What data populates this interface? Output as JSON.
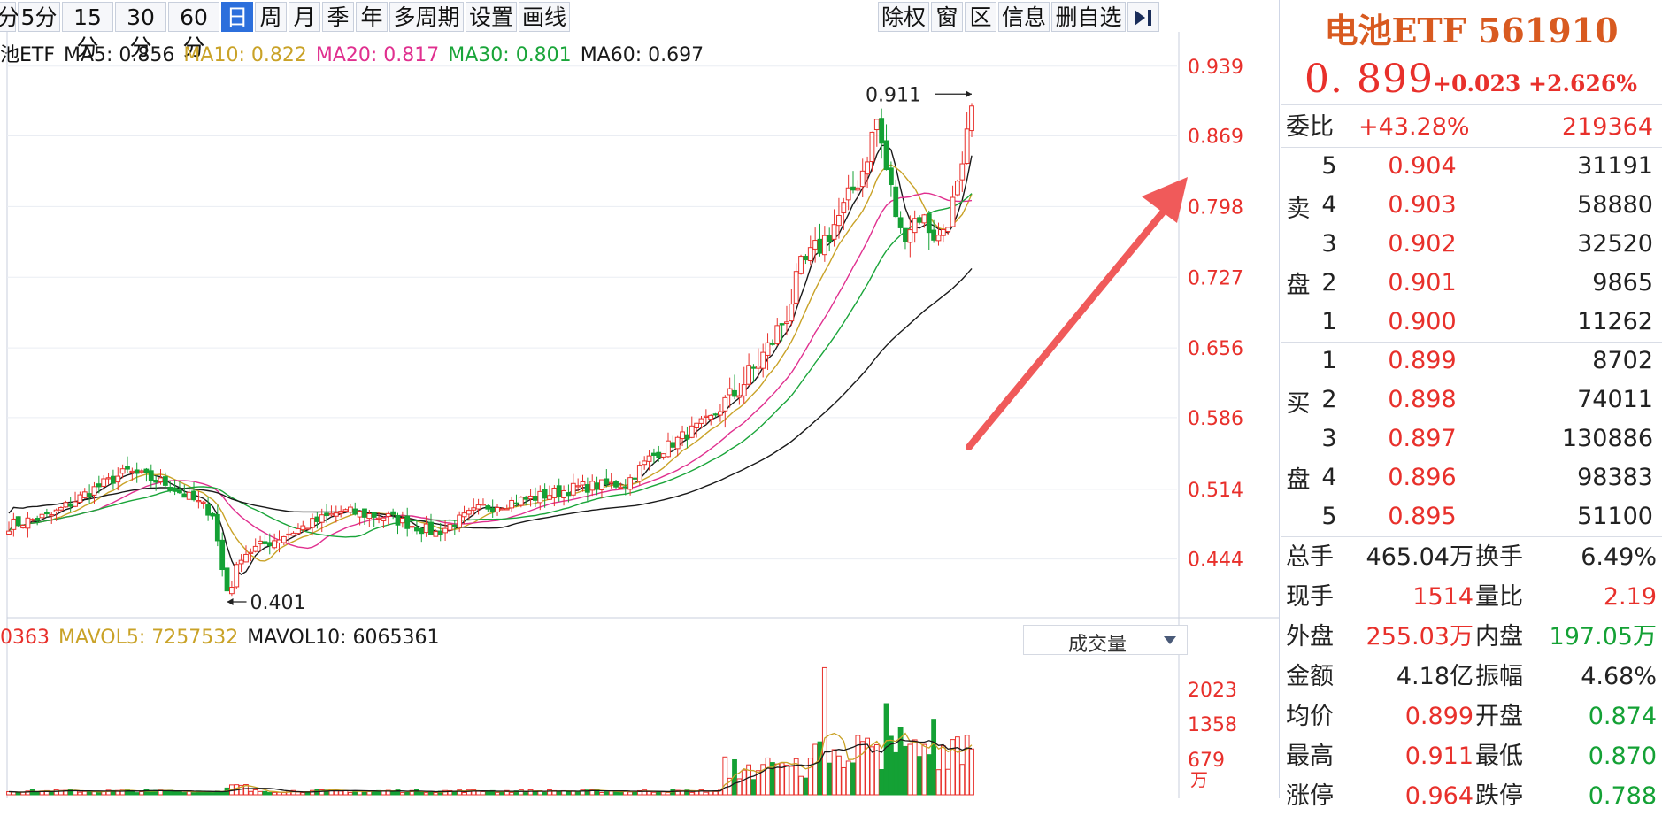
{
  "toolbar": {
    "periods": [
      "分",
      "5分",
      "15分",
      "30分",
      "60分",
      "日",
      "周",
      "月",
      "季",
      "年",
      "多周期",
      "设置",
      "画线"
    ],
    "active_period": "日",
    "actions": [
      "除权",
      "窗",
      "区",
      "信息",
      "删自选"
    ]
  },
  "ma_legend": {
    "name": "池ETF",
    "items": [
      {
        "label": "MA5: 0.856",
        "color": "#1a1a1a"
      },
      {
        "label": "MA10: 0.822",
        "color": "#c9a227"
      },
      {
        "label": "MA20: 0.817",
        "color": "#e0308f"
      },
      {
        "label": "MA30: 0.801",
        "color": "#1aa53a"
      },
      {
        "label": "MA60: 0.697",
        "color": "#1a1a1a"
      }
    ]
  },
  "vol_legend": {
    "items": [
      {
        "label": "0363",
        "color": "#e8302b"
      },
      {
        "label": "MAVOL5: 7257532",
        "color": "#c9a227"
      },
      {
        "label": "MAVOL10: 6065361",
        "color": "#1a1a1a"
      }
    ],
    "selector": "成交量"
  },
  "chart_data": {
    "type": "candlestick",
    "price_axis": {
      "ticks": [
        "0.939",
        "0.869",
        "0.798",
        "0.727",
        "0.656",
        "0.586",
        "0.514",
        "0.444"
      ],
      "range": [
        0.385,
        0.945
      ]
    },
    "volume_axis": {
      "ticks": [
        "2023",
        "1358",
        "679"
      ],
      "unit": "万",
      "range": [
        0,
        2600
      ]
    },
    "annotations": {
      "high": "0.911",
      "low": "0.401"
    },
    "colors": {
      "up": "#e8302b",
      "down": "#14a135",
      "ma5": "#1a1a1a",
      "ma10": "#c9a227",
      "ma20": "#e0308f",
      "ma30": "#1aa53a",
      "ma60": "#1a1a1a",
      "arrow": "#f05a5a"
    }
  },
  "quote": {
    "title": "电池ETF 561910",
    "price": "0. 899",
    "change": "+0.023",
    "change_pct": "+2.626%",
    "weibi": {
      "label": "委比",
      "pct": "+43.28%",
      "diff": "219364"
    },
    "sell_label": [
      "卖",
      "盘"
    ],
    "buy_label": [
      "买",
      "盘"
    ],
    "sell": [
      {
        "level": "5",
        "price": "0.904",
        "vol": "31191"
      },
      {
        "level": "4",
        "price": "0.903",
        "vol": "58880"
      },
      {
        "level": "3",
        "price": "0.902",
        "vol": "32520"
      },
      {
        "level": "2",
        "price": "0.901",
        "vol": "9865"
      },
      {
        "level": "1",
        "price": "0.900",
        "vol": "11262"
      }
    ],
    "buy": [
      {
        "level": "1",
        "price": "0.899",
        "vol": "8702"
      },
      {
        "level": "2",
        "price": "0.898",
        "vol": "74011"
      },
      {
        "level": "3",
        "price": "0.897",
        "vol": "130886"
      },
      {
        "level": "4",
        "price": "0.896",
        "vol": "98383"
      },
      {
        "level": "5",
        "price": "0.895",
        "vol": "51100"
      }
    ],
    "stats": [
      {
        "k1": "总手",
        "v1": "465.04万",
        "c1": "dark",
        "k2": "换手",
        "v2": "6.49%",
        "c2": "dark"
      },
      {
        "k1": "现手",
        "v1": "1514",
        "c1": "red",
        "k2": "量比",
        "v2": "2.19",
        "c2": "red"
      },
      {
        "k1": "外盘",
        "v1": "255.03万",
        "c1": "red",
        "k2": "内盘",
        "v2": "197.05万",
        "c2": "green"
      },
      {
        "k1": "金额",
        "v1": "4.18亿",
        "c1": "dark",
        "k2": "振幅",
        "v2": "4.68%",
        "c2": "dark"
      },
      {
        "k1": "均价",
        "v1": "0.899",
        "c1": "red",
        "k2": "开盘",
        "v2": "0.874",
        "c2": "green"
      },
      {
        "k1": "最高",
        "v1": "0.911",
        "c1": "red",
        "k2": "最低",
        "v2": "0.870",
        "c2": "green"
      },
      {
        "k1": "涨停",
        "v1": "0.964",
        "c1": "red",
        "k2": "跌停",
        "v2": "0.788",
        "c2": "green"
      }
    ]
  }
}
